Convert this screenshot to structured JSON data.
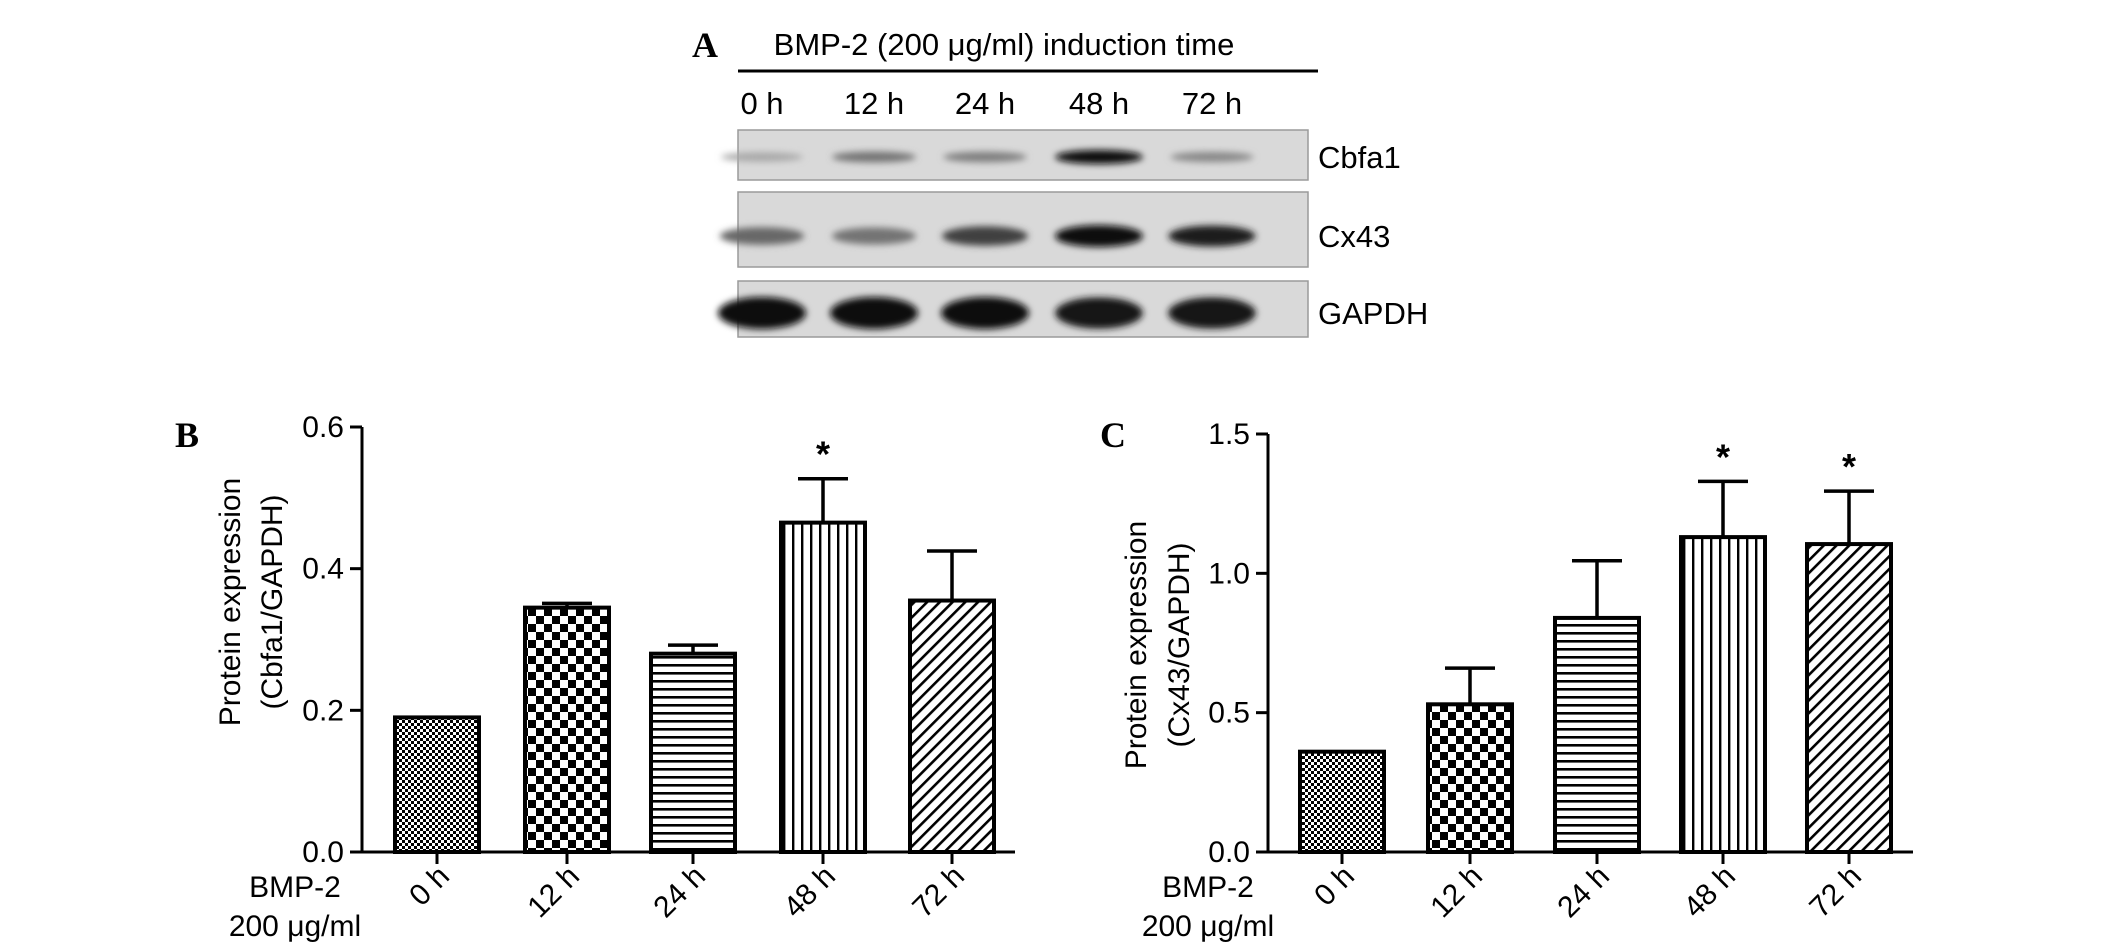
{
  "panel_a": {
    "letter": "A",
    "header": "BMP-2 (200 μg/ml) induction time",
    "lanes": [
      "0 h",
      "12 h",
      "24 h",
      "48 h",
      "72 h"
    ],
    "blots": [
      {
        "label": "Cbfa1",
        "intensities": [
          0.25,
          0.5,
          0.45,
          1.0,
          0.4
        ]
      },
      {
        "label": "Cx43",
        "intensities": [
          0.55,
          0.5,
          0.75,
          1.0,
          0.9
        ]
      },
      {
        "label": "GAPDH",
        "intensities": [
          1.0,
          1.0,
          1.0,
          0.95,
          0.95
        ]
      }
    ]
  },
  "condition_label": {
    "line1": "BMP-2",
    "line2": "200 μg/ml"
  },
  "chart_data": [
    {
      "type": "bar",
      "panel": "B",
      "ylabel_line1": "Protein expression",
      "ylabel_line2": "(Cbfa1/GAPDH)",
      "categories": [
        "0 h",
        "12 h",
        "24 h",
        "48 h",
        "72 h"
      ],
      "values": [
        0.19,
        0.345,
        0.28,
        0.465,
        0.355
      ],
      "errors": [
        0.0,
        0.006,
        0.012,
        0.062,
        0.07
      ],
      "significance": [
        "",
        "",
        "",
        "*",
        ""
      ],
      "patterns": [
        "fine-check",
        "checker",
        "hlines",
        "vlines",
        "diag"
      ],
      "ylim": [
        0,
        0.6
      ],
      "yticks": [
        0.0,
        0.2,
        0.4,
        0.6
      ],
      "ytick_labels": [
        "0.0",
        "0.2",
        "0.4",
        "0.6"
      ]
    },
    {
      "type": "bar",
      "panel": "C",
      "ylabel_line1": "Protein expression",
      "ylabel_line2": "(Cx43/GAPDH)",
      "categories": [
        "0 h",
        "12 h",
        "24 h",
        "48 h",
        "72 h"
      ],
      "values": [
        0.36,
        0.53,
        0.84,
        1.13,
        1.105
      ],
      "errors": [
        0.0,
        0.13,
        0.205,
        0.2,
        0.19
      ],
      "significance": [
        "",
        "",
        "",
        "*",
        "*"
      ],
      "patterns": [
        "fine-check",
        "checker",
        "hlines",
        "vlines",
        "diag"
      ],
      "ylim": [
        0,
        1.5
      ],
      "yticks": [
        0.0,
        0.5,
        1.0,
        1.5
      ],
      "ytick_labels": [
        "0.0",
        "0.5",
        "1.0",
        "1.5"
      ]
    }
  ]
}
